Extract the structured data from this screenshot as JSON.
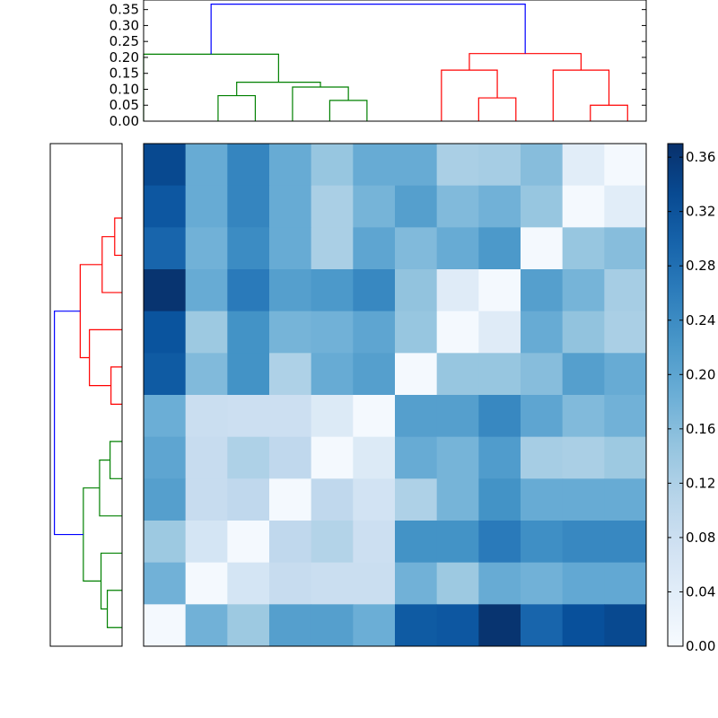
{
  "chart_data": [
    {
      "type": "dendrogram",
      "orientation": "top",
      "ylim": [
        0,
        0.38
      ],
      "yticks": [
        "0.00",
        "0.05",
        "0.10",
        "0.15",
        "0.20",
        "0.25",
        "0.30",
        "0.35"
      ],
      "links": [
        {
          "x": [
            5,
            5,
            15,
            15
          ],
          "y": [
            0,
            0.08,
            0.08,
            0
          ],
          "color": "#008000"
        },
        {
          "x": [
            35,
            35,
            45,
            45
          ],
          "y": [
            0,
            0.065,
            0.065,
            0
          ],
          "color": "#008000"
        },
        {
          "x": [
            25,
            25,
            40,
            40
          ],
          "y": [
            0,
            0.107,
            0.107,
            0.065
          ],
          "color": "#008000"
        },
        {
          "x": [
            10,
            10,
            32.5,
            32.5
          ],
          "y": [
            0.08,
            0.122,
            0.122,
            0.107
          ],
          "color": "#008000"
        },
        {
          "x": [
            -15,
            -15,
            21.25,
            21.25
          ],
          "y": [
            0,
            0.21,
            0.21,
            0.122
          ],
          "color": "#008000"
        },
        {
          "x": [
            75,
            75,
            85,
            85
          ],
          "y": [
            0,
            0.073,
            0.073,
            0
          ],
          "color": "#ff0000"
        },
        {
          "x": [
            65,
            65,
            80,
            80
          ],
          "y": [
            0,
            0.16,
            0.16,
            0.073
          ],
          "color": "#ff0000"
        },
        {
          "x": [
            105,
            105,
            115,
            115
          ],
          "y": [
            0,
            0.05,
            0.05,
            0
          ],
          "color": "#ff0000"
        },
        {
          "x": [
            95,
            95,
            110,
            110
          ],
          "y": [
            0,
            0.16,
            0.16,
            0.05
          ],
          "color": "#ff0000"
        },
        {
          "x": [
            72.5,
            72.5,
            102.5,
            102.5
          ],
          "y": [
            0.16,
            0.212,
            0.212,
            0.16
          ],
          "color": "#ff0000"
        },
        {
          "x": [
            3.125,
            3.125,
            87.5,
            87.5
          ],
          "y": [
            0.21,
            0.367,
            0.367,
            0.212
          ],
          "color": "#0000ff"
        }
      ]
    },
    {
      "type": "dendrogram",
      "orientation": "left",
      "links": [
        {
          "y": [
            5,
            5,
            15,
            15
          ],
          "x": [
            0,
            0.04,
            0.04,
            0
          ],
          "color": "#ff0000"
        },
        {
          "y": [
            10,
            10,
            25,
            25
          ],
          "x": [
            0.04,
            0.108,
            0.108,
            0
          ],
          "color": "#ff0000"
        },
        {
          "y": [
            45,
            45,
            55,
            55
          ],
          "x": [
            0,
            0.06,
            0.06,
            0
          ],
          "color": "#ff0000"
        },
        {
          "y": [
            35,
            35,
            50,
            50
          ],
          "x": [
            0,
            0.177,
            0.177,
            0.06
          ],
          "color": "#ff0000"
        },
        {
          "y": [
            17.5,
            17.5,
            42.5,
            42.5
          ],
          "x": [
            0.108,
            0.227,
            0.227,
            0.177
          ],
          "color": "#ff0000"
        },
        {
          "y": [
            65,
            65,
            75,
            75
          ],
          "x": [
            0,
            0.065,
            0.065,
            0
          ],
          "color": "#008000"
        },
        {
          "y": [
            70,
            70,
            85,
            85
          ],
          "x": [
            0.065,
            0.122,
            0.122,
            0
          ],
          "color": "#008000"
        },
        {
          "y": [
            105,
            105,
            115,
            115
          ],
          "x": [
            0,
            0.08,
            0.08,
            0
          ],
          "color": "#008000"
        },
        {
          "y": [
            95,
            95,
            110,
            110
          ],
          "x": [
            0,
            0.114,
            0.114,
            0.08
          ],
          "color": "#008000"
        },
        {
          "y": [
            77.5,
            77.5,
            102.5,
            102.5
          ],
          "x": [
            0.122,
            0.21,
            0.21,
            0.114
          ],
          "color": "#008000"
        },
        {
          "y": [
            30,
            30,
            90,
            90
          ],
          "x": [
            0.227,
            0.367,
            0.367,
            0.21
          ],
          "color": "#0000ff"
        }
      ]
    },
    {
      "type": "heatmap",
      "colormap": "Blues",
      "vmin": 0,
      "vmax": 0.37,
      "rows": 12,
      "cols": 12,
      "values": [
        [
          0.335,
          0.19,
          0.25,
          0.19,
          0.145,
          0.19,
          0.19,
          0.125,
          0.13,
          0.16,
          0.04,
          0.005
        ],
        [
          0.315,
          0.19,
          0.25,
          0.19,
          0.125,
          0.175,
          0.21,
          0.165,
          0.18,
          0.145,
          0.005,
          0.04
        ],
        [
          0.295,
          0.18,
          0.24,
          0.19,
          0.125,
          0.2,
          0.165,
          0.19,
          0.22,
          0.005,
          0.145,
          0.16
        ],
        [
          0.365,
          0.19,
          0.265,
          0.21,
          0.22,
          0.245,
          0.15,
          0.045,
          0.005,
          0.21,
          0.175,
          0.13
        ],
        [
          0.32,
          0.14,
          0.23,
          0.175,
          0.18,
          0.2,
          0.145,
          0.005,
          0.045,
          0.19,
          0.15,
          0.125
        ],
        [
          0.31,
          0.165,
          0.23,
          0.12,
          0.19,
          0.21,
          0.005,
          0.145,
          0.145,
          0.16,
          0.21,
          0.19
        ],
        [
          0.185,
          0.085,
          0.08,
          0.08,
          0.05,
          0.005,
          0.21,
          0.21,
          0.245,
          0.2,
          0.165,
          0.18
        ],
        [
          0.2,
          0.09,
          0.12,
          0.1,
          0.005,
          0.05,
          0.19,
          0.175,
          0.215,
          0.13,
          0.125,
          0.14
        ],
        [
          0.21,
          0.09,
          0.1,
          0.005,
          0.1,
          0.07,
          0.12,
          0.175,
          0.23,
          0.19,
          0.19,
          0.19
        ],
        [
          0.14,
          0.065,
          0.005,
          0.1,
          0.115,
          0.08,
          0.23,
          0.23,
          0.265,
          0.235,
          0.245,
          0.245
        ],
        [
          0.18,
          0.005,
          0.065,
          0.09,
          0.085,
          0.085,
          0.18,
          0.14,
          0.19,
          0.18,
          0.195,
          0.195
        ],
        [
          0.005,
          0.18,
          0.14,
          0.21,
          0.21,
          0.185,
          0.31,
          0.315,
          0.365,
          0.295,
          0.325,
          0.335
        ]
      ]
    },
    {
      "type": "colorbar",
      "colormap": "Blues",
      "range": [
        0,
        0.37
      ],
      "ticks": [
        0,
        0.04,
        0.08,
        0.12,
        0.16,
        0.2,
        0.24,
        0.28,
        0.32,
        0.36
      ],
      "tick_labels": [
        "0.00",
        "0.04",
        "0.08",
        "0.12",
        "0.16",
        "0.20",
        "0.24",
        "0.28",
        "0.32",
        "0.36"
      ]
    }
  ]
}
